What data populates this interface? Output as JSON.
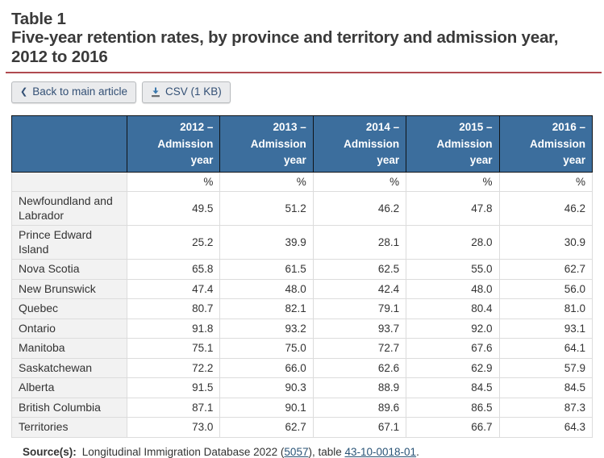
{
  "header": {
    "table_label": "Table 1",
    "title": "Five-year retention rates, by province and territory and admission year, 2012 to 2016"
  },
  "toolbar": {
    "back_button_label": "Back to main article",
    "back_chevron": "❮",
    "csv_button_label": "CSV (1 KB)"
  },
  "colors": {
    "accent_red": "#b04a50",
    "table_header_blue": "#3c6e9d",
    "button_text": "#335075",
    "link_blue": "#295376",
    "row_label_bg": "#f2f2f2"
  },
  "table": {
    "columns": [
      {
        "year": "2012 –",
        "label": "Admission year"
      },
      {
        "year": "2013 –",
        "label": "Admission year"
      },
      {
        "year": "2014 –",
        "label": "Admission year"
      },
      {
        "year": "2015 –",
        "label": "Admission year"
      },
      {
        "year": "2016 –",
        "label": "Admission year"
      }
    ],
    "unit_row": [
      "%",
      "%",
      "%",
      "%",
      "%"
    ],
    "rows": [
      {
        "label": "Newfoundland and Labrador",
        "values": [
          "49.5",
          "51.2",
          "46.2",
          "47.8",
          "46.2"
        ]
      },
      {
        "label": "Prince Edward Island",
        "values": [
          "25.2",
          "39.9",
          "28.1",
          "28.0",
          "30.9"
        ]
      },
      {
        "label": "Nova Scotia",
        "values": [
          "65.8",
          "61.5",
          "62.5",
          "55.0",
          "62.7"
        ]
      },
      {
        "label": "New Brunswick",
        "values": [
          "47.4",
          "48.0",
          "42.4",
          "48.0",
          "56.0"
        ]
      },
      {
        "label": "Quebec",
        "values": [
          "80.7",
          "82.1",
          "79.1",
          "80.4",
          "81.0"
        ]
      },
      {
        "label": "Ontario",
        "values": [
          "91.8",
          "93.2",
          "93.7",
          "92.0",
          "93.1"
        ]
      },
      {
        "label": "Manitoba",
        "values": [
          "75.1",
          "75.0",
          "72.7",
          "67.6",
          "64.1"
        ]
      },
      {
        "label": "Saskatchewan",
        "values": [
          "72.2",
          "66.0",
          "62.6",
          "62.9",
          "57.9"
        ]
      },
      {
        "label": "Alberta",
        "values": [
          "91.5",
          "90.3",
          "88.9",
          "84.5",
          "84.5"
        ]
      },
      {
        "label": "British Columbia",
        "values": [
          "87.1",
          "90.1",
          "89.6",
          "86.5",
          "87.3"
        ]
      },
      {
        "label": "Territories",
        "values": [
          "73.0",
          "62.7",
          "67.1",
          "66.7",
          "64.3"
        ]
      }
    ]
  },
  "footer": {
    "source_label": "Source(s):",
    "text_before_link1": "Longitudinal Immigration Database 2022 (",
    "link1": "5057",
    "text_between_links": "), table ",
    "link2": "43-10-0018-01",
    "text_after_link2": "."
  }
}
